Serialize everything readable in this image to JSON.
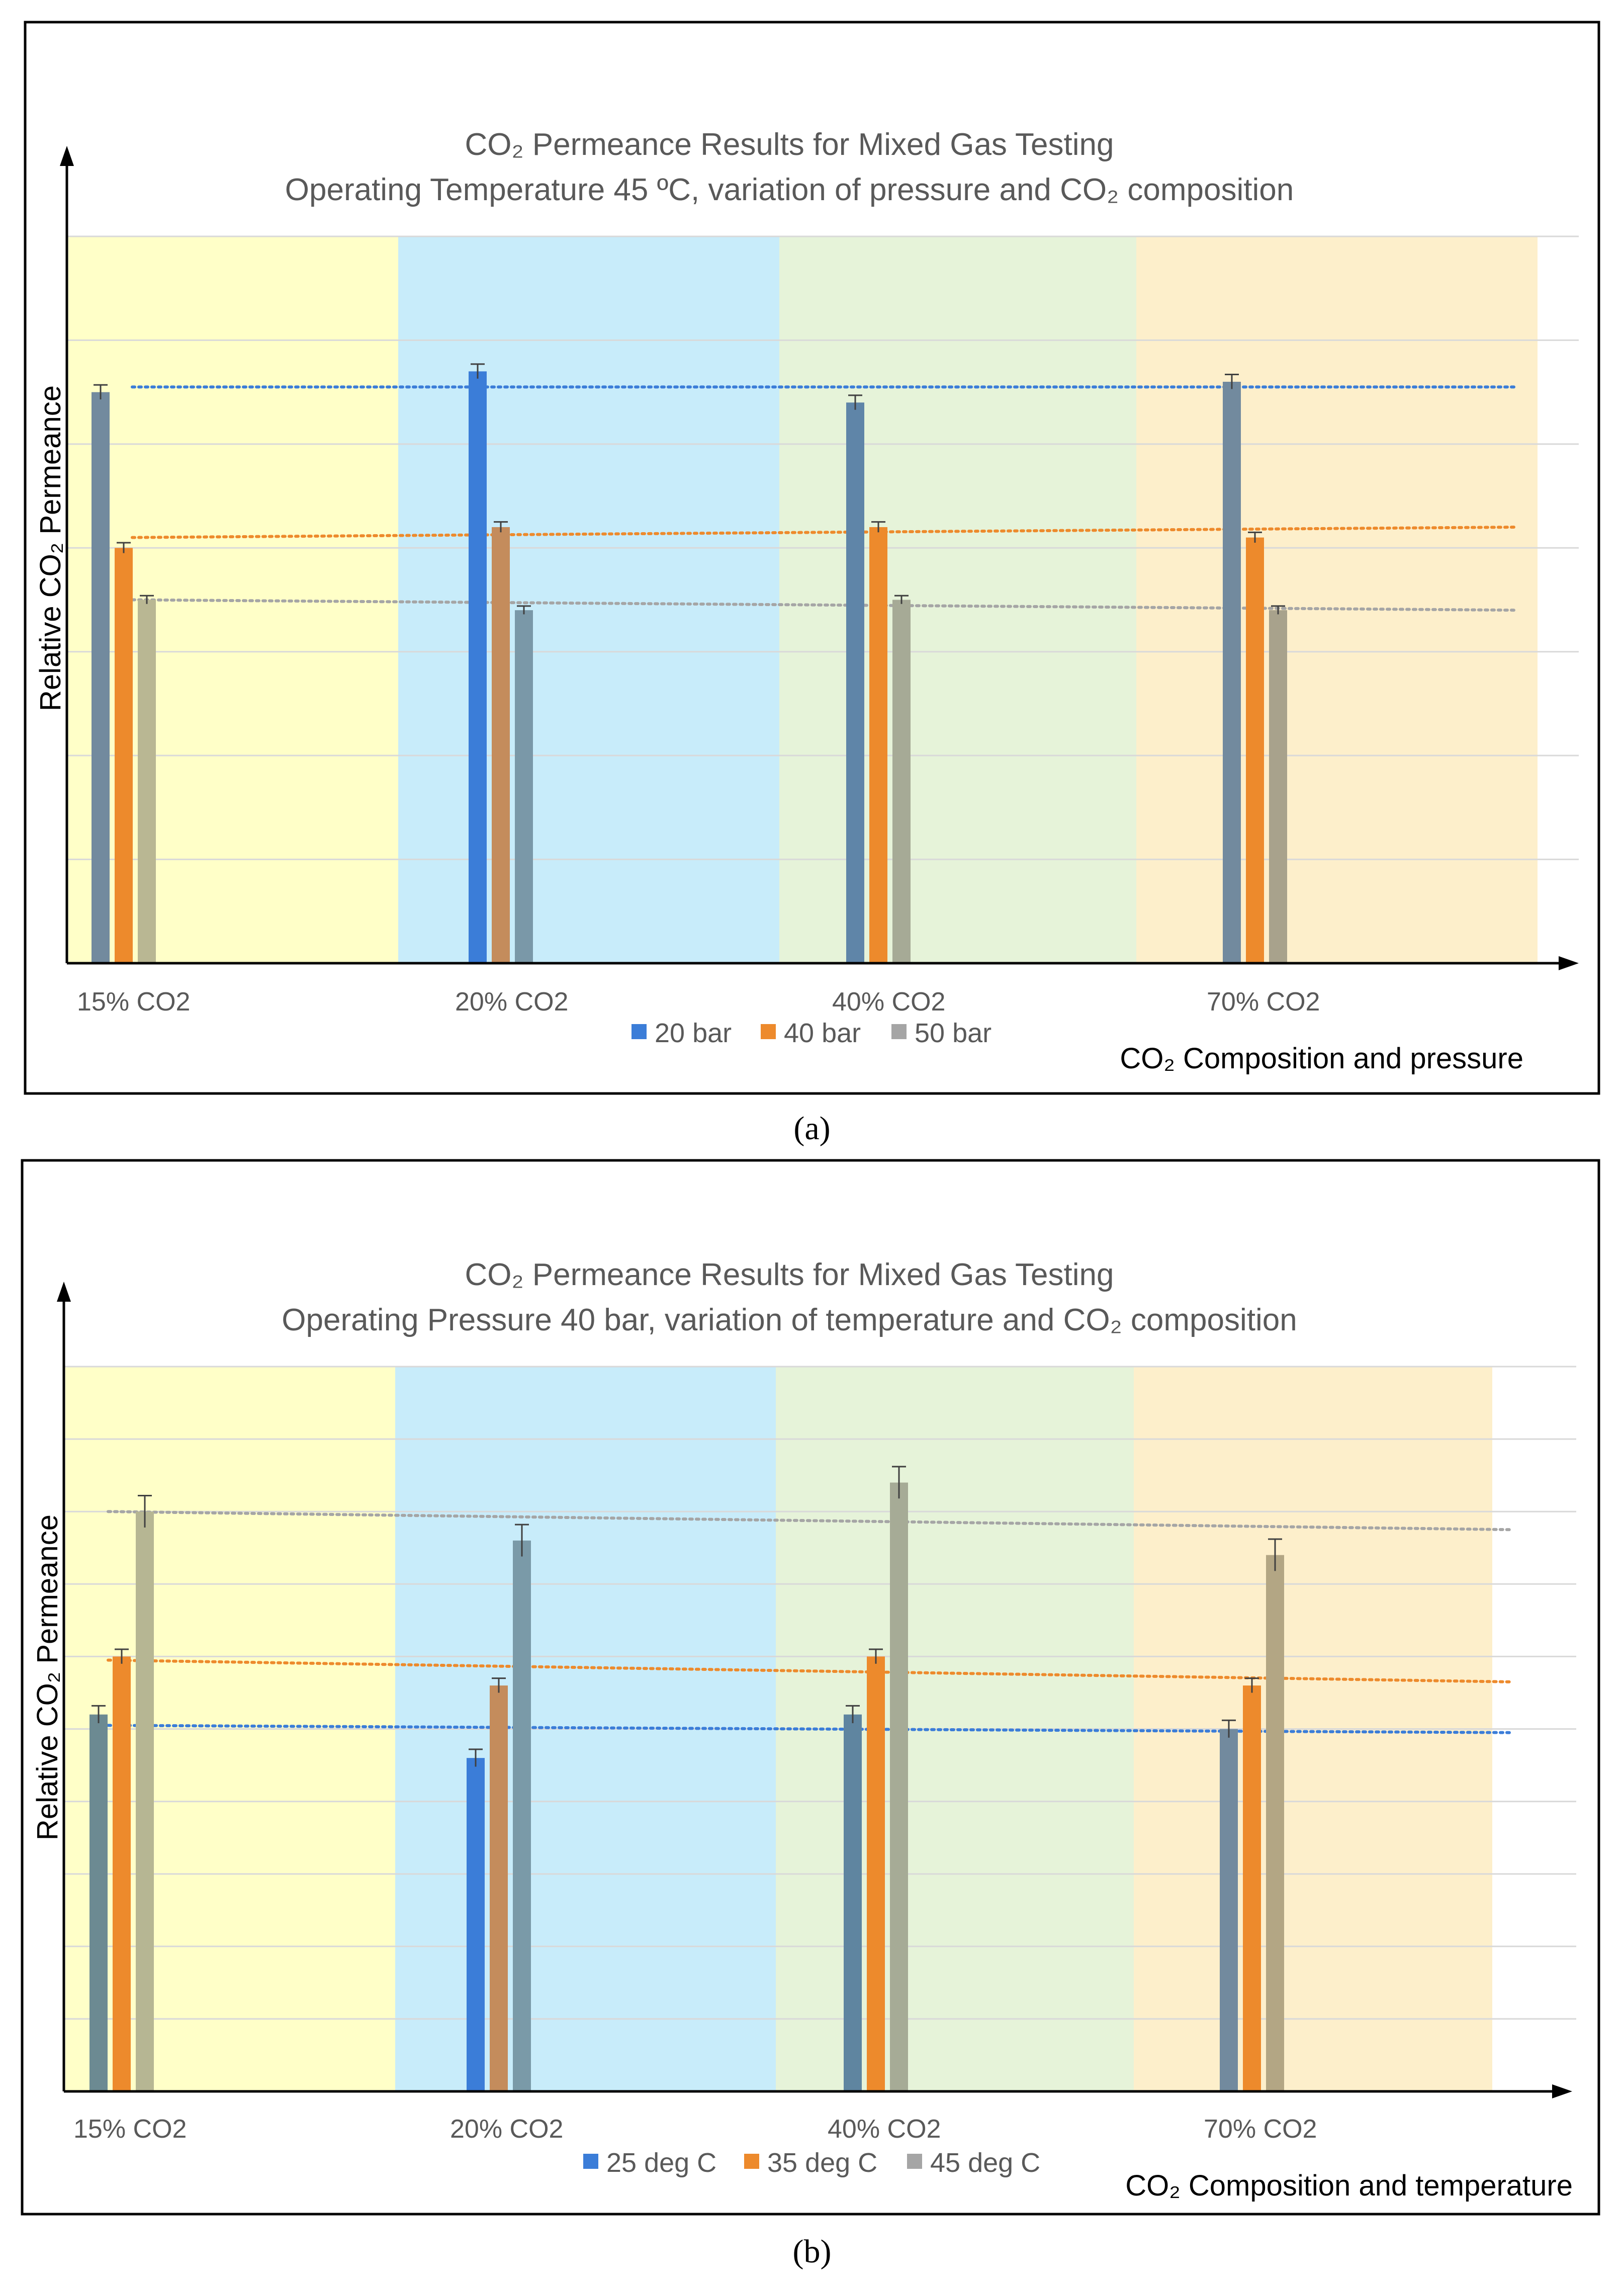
{
  "colors": {
    "bar_c1": "#3b7dd8",
    "bar_c2": "#ed8a2c",
    "bar_c3": "#a5a5a5",
    "text": "#595959",
    "gridline": "#d9d9d9",
    "axis": "#000000",
    "frame": "#000000"
  },
  "chart_data": [
    {
      "panel_label": "(a)",
      "type": "bar",
      "title_line1": "CO₂ Permeance Results for Mixed Gas Testing",
      "title_line2": "Operating Temperature 45 ºC, variation of pressure and CO₂ composition",
      "ylabel": "Relative CO₂ Permeance",
      "xlabel": "CO₂ Composition and pressure",
      "ylim": [
        0,
        7
      ],
      "y_gridline_step": 1,
      "categories": [
        "15% CO2",
        "20% CO2",
        "40% CO2",
        "70% CO2"
      ],
      "region_colors": [
        "#ffffc8",
        "#c8ecfa",
        "#e6f3d9",
        "#fdefcb"
      ],
      "series": [
        {
          "name": "20 bar",
          "values": [
            5.5,
            5.7,
            5.4,
            5.6
          ],
          "errors": [
            0.07,
            0.07,
            0.07,
            0.07
          ],
          "trend": [
            5.55,
            5.55
          ]
        },
        {
          "name": "40 bar",
          "values": [
            4.0,
            4.2,
            4.2,
            4.1
          ],
          "errors": [
            0.05,
            0.05,
            0.05,
            0.05
          ],
          "trend": [
            4.1,
            4.2
          ]
        },
        {
          "name": "50 bar",
          "values": [
            3.5,
            3.4,
            3.5,
            3.4
          ],
          "errors": [
            0.04,
            0.04,
            0.04,
            0.04
          ],
          "trend": [
            3.5,
            3.4
          ]
        }
      ],
      "bar_tints": [
        [
          "#728a9e",
          "#ed8a2c",
          "#b9b793"
        ],
        [
          "#3b7dd8",
          "#c48c5c",
          "#7a98a8"
        ],
        [
          "#5f85a8",
          "#ed8a2c",
          "#a6aa96"
        ],
        [
          "#728a9e",
          "#ed8a2c",
          "#a8a28c"
        ]
      ]
    },
    {
      "panel_label": "(b)",
      "type": "bar",
      "title_line1": "CO₂ Permeance Results for Mixed Gas Testing",
      "title_line2": "Operating Pressure 40 bar, variation of temperature and CO₂ composition",
      "ylabel": "Relative CO₂ Permeance",
      "xlabel": "CO₂ Composition and temperature",
      "ylim": [
        0,
        10
      ],
      "y_gridline_step": 1,
      "categories": [
        "15% CO2",
        "20% CO2",
        "40% CO2",
        "70% CO2"
      ],
      "region_colors": [
        "#ffffc8",
        "#c8ecfa",
        "#e6f3d9",
        "#fdefcb"
      ],
      "series": [
        {
          "name": "25 deg C",
          "values": [
            5.2,
            4.6,
            5.2,
            5.0
          ],
          "errors": [
            0.12,
            0.12,
            0.12,
            0.12
          ],
          "trend": [
            5.05,
            4.95
          ]
        },
        {
          "name": "35 deg C",
          "values": [
            6.0,
            5.6,
            6.0,
            5.6
          ],
          "errors": [
            0.1,
            0.1,
            0.1,
            0.1
          ],
          "trend": [
            5.95,
            5.65
          ]
        },
        {
          "name": "45 deg C",
          "values": [
            8.0,
            7.6,
            8.4,
            7.4
          ],
          "errors": [
            0.22,
            0.22,
            0.22,
            0.22
          ],
          "trend": [
            8.0,
            7.75
          ]
        }
      ],
      "bar_tints": [
        [
          "#6c8a92",
          "#ed8a2c",
          "#b6b693"
        ],
        [
          "#3b7dd8",
          "#c48c5c",
          "#7a9aa8"
        ],
        [
          "#5f85a0",
          "#ed8a2c",
          "#a6ab96"
        ],
        [
          "#728a9e",
          "#ed8a2c",
          "#b3a684"
        ]
      ]
    }
  ]
}
